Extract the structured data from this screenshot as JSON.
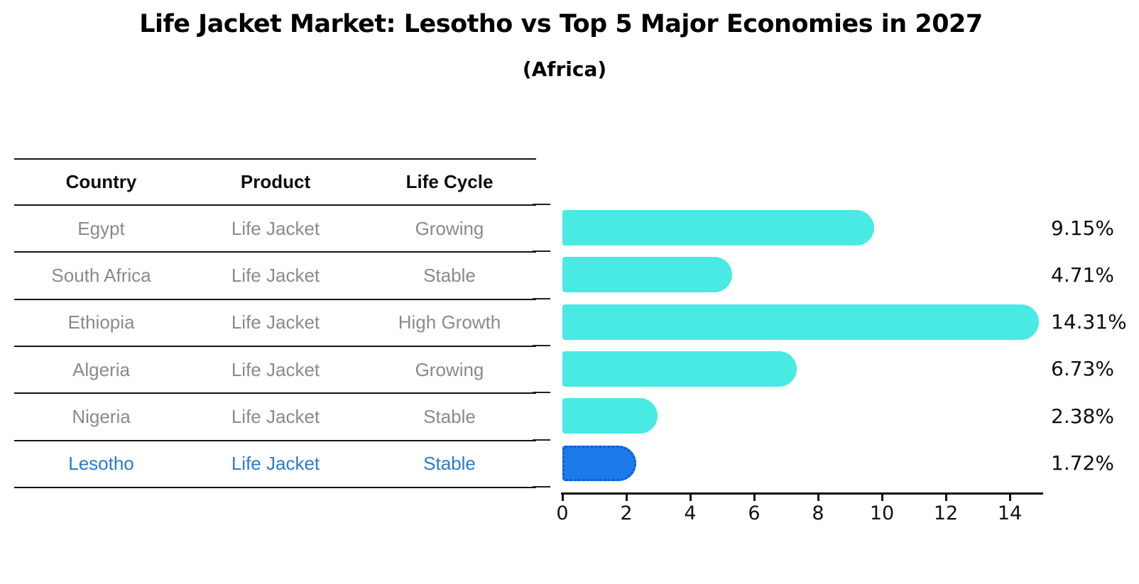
{
  "header": {
    "title": "Life Jacket Market: Lesotho vs Top 5 Major Economies in 2027",
    "subtitle": "(Africa)"
  },
  "table": {
    "columns": [
      "Country",
      "Product",
      "Life Cycle"
    ],
    "rows": [
      {
        "country": "Egypt",
        "product": "Life Jacket",
        "life_cycle": "Growing",
        "highlight": false
      },
      {
        "country": "South Africa",
        "product": "Life Jacket",
        "life_cycle": "Stable",
        "highlight": false
      },
      {
        "country": "Ethiopia",
        "product": "Life Jacket",
        "life_cycle": "High Growth",
        "highlight": false
      },
      {
        "country": "Algeria",
        "product": "Life Jacket",
        "life_cycle": "Growing",
        "highlight": false
      },
      {
        "country": "Nigeria",
        "product": "Life Jacket",
        "life_cycle": "Stable",
        "highlight": false
      },
      {
        "country": "Lesotho",
        "product": "Life Jacket",
        "life_cycle": "Stable",
        "highlight": true
      }
    ]
  },
  "chart_data": {
    "type": "bar",
    "orientation": "horizontal",
    "title": "Life Jacket Market: Lesotho vs Top 5 Major Economies in 2027",
    "subtitle": "(Africa)",
    "categories": [
      "Egypt",
      "South Africa",
      "Ethiopia",
      "Algeria",
      "Nigeria",
      "Lesotho"
    ],
    "values": [
      9.15,
      4.71,
      14.31,
      6.73,
      2.38,
      1.72
    ],
    "value_labels": [
      "9.15%",
      "4.71%",
      "14.31%",
      "6.73%",
      "2.38%",
      "1.72%"
    ],
    "x_ticks": [
      0,
      2,
      4,
      6,
      8,
      10,
      12,
      14
    ],
    "xlim": [
      0,
      15
    ],
    "grid": false,
    "legend": "none",
    "bar_color": "#49e9e4",
    "highlight_bar_color": "#1b7be8",
    "highlight_index": 5,
    "highlight_text_color": "#2b7bcb",
    "axis_color": "#111111",
    "row_text_color": "#8a8a8a"
  }
}
